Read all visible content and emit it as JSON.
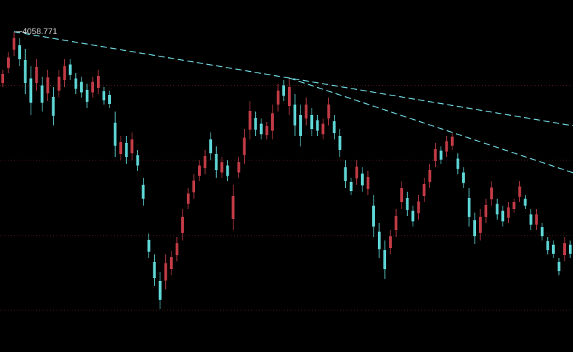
{
  "chart_data": {
    "type": "candlestick",
    "open": [
      3912,
      3955,
      4007,
      4020,
      3978,
      3925,
      3912,
      3905,
      3882,
      3872,
      3890,
      3920,
      3965,
      3925,
      3915,
      3892,
      3885,
      3898,
      3888,
      3878,
      3798,
      3708,
      3740,
      3710,
      3705,
      3620,
      3462,
      3398,
      3344,
      3345,
      3378,
      3418,
      3482,
      3565,
      3598,
      3645,
      3668,
      3750,
      3708,
      3655,
      3675,
      3522,
      3655,
      3705,
      3778,
      3812,
      3795,
      3762,
      3775,
      3850,
      3905,
      3846,
      3850,
      3820,
      3810,
      3820,
      3805,
      3765,
      3810,
      3802,
      3760,
      3670,
      3628,
      3638,
      3652,
      3608,
      3560,
      3485,
      3432,
      3438,
      3490,
      3570,
      3582,
      3545,
      3538,
      3588,
      3628,
      3688,
      3718,
      3715,
      3732,
      3695,
      3655,
      3582,
      3518,
      3482,
      3528,
      3578,
      3565,
      3545,
      3525,
      3550,
      3585,
      3580,
      3535,
      3505,
      3498,
      3458,
      3448,
      3398,
      3418,
      3448
    ],
    "high": [
      3950,
      4000,
      4058.771,
      4040,
      4010,
      3960,
      3980,
      3930,
      3950,
      3900,
      3950,
      3980,
      3980,
      3940,
      3930,
      3910,
      3930,
      3950,
      3900,
      3890,
      3830,
      3760,
      3760,
      3770,
      3720,
      3640,
      3480,
      3420,
      3370,
      3420,
      3430,
      3470,
      3550,
      3610,
      3650,
      3690,
      3720,
      3770,
      3730,
      3700,
      3690,
      3620,
      3700,
      3780,
      3860,
      3830,
      3810,
      3800,
      3850,
      3910,
      3920,
      3926,
      3880,
      3850,
      3870,
      3840,
      3820,
      3810,
      3870,
      3820,
      3780,
      3690,
      3640,
      3690,
      3670,
      3660,
      3590,
      3510,
      3460,
      3490,
      3550,
      3630,
      3600,
      3560,
      3590,
      3640,
      3680,
      3740,
      3730,
      3760,
      3770,
      3710,
      3670,
      3610,
      3540,
      3550,
      3580,
      3630,
      3580,
      3560,
      3570,
      3580,
      3630,
      3590,
      3550,
      3550,
      3510,
      3470,
      3460,
      3410,
      3470,
      3460
    ],
    "low": [
      3900,
      3940,
      3990,
      3960,
      3880,
      3820,
      3890,
      3830,
      3860,
      3790,
      3870,
      3900,
      3920,
      3880,
      3870,
      3840,
      3870,
      3880,
      3850,
      3840,
      3700,
      3690,
      3680,
      3690,
      3660,
      3560,
      3410,
      3330,
      3264,
      3320,
      3360,
      3400,
      3460,
      3550,
      3580,
      3630,
      3650,
      3690,
      3640,
      3640,
      3630,
      3490,
      3640,
      3680,
      3750,
      3760,
      3750,
      3750,
      3750,
      3830,
      3860,
      3820,
      3760,
      3730,
      3790,
      3760,
      3760,
      3750,
      3790,
      3750,
      3700,
      3610,
      3590,
      3620,
      3600,
      3590,
      3470,
      3410,
      3350,
      3420,
      3470,
      3550,
      3530,
      3500,
      3520,
      3570,
      3610,
      3670,
      3680,
      3700,
      3720,
      3650,
      3610,
      3500,
      3450,
      3460,
      3510,
      3560,
      3520,
      3500,
      3510,
      3540,
      3570,
      3550,
      3490,
      3490,
      3460,
      3420,
      3410,
      3360,
      3400,
      3410
    ],
    "close": [
      3938,
      3985,
      4041,
      3980,
      3912,
      3855,
      3958,
      3855,
      3928,
      3818,
      3930,
      3960,
      3935,
      3895,
      3885,
      3858,
      3915,
      3932,
      3862,
      3852,
      3732,
      3742,
      3700,
      3750,
      3675,
      3580,
      3428,
      3352,
      3290,
      3395,
      3412,
      3452,
      3528,
      3595,
      3632,
      3675,
      3702,
      3710,
      3662,
      3685,
      3645,
      3588,
      3685,
      3755,
      3832,
      3778,
      3765,
      3788,
      3825,
      3890,
      3875,
      3900,
      3790,
      3760,
      3850,
      3780,
      3775,
      3795,
      3850,
      3768,
      3720,
      3630,
      3602,
      3672,
      3618,
      3642,
      3500,
      3435,
      3378,
      3472,
      3530,
      3610,
      3548,
      3515,
      3572,
      3622,
      3662,
      3722,
      3692,
      3745,
      3758,
      3665,
      3625,
      3528,
      3472,
      3528,
      3562,
      3612,
      3535,
      3515,
      3555,
      3570,
      3615,
      3560,
      3505,
      3535,
      3472,
      3432,
      3422,
      3372,
      3452,
      3422
    ],
    "up_color": "#c23b45",
    "down_color": "#5fd6d6",
    "ylim": [
      3140,
      4150
    ],
    "yticks": [
      3260,
      3475,
      3690,
      3905
    ],
    "grid": true
  }
}
